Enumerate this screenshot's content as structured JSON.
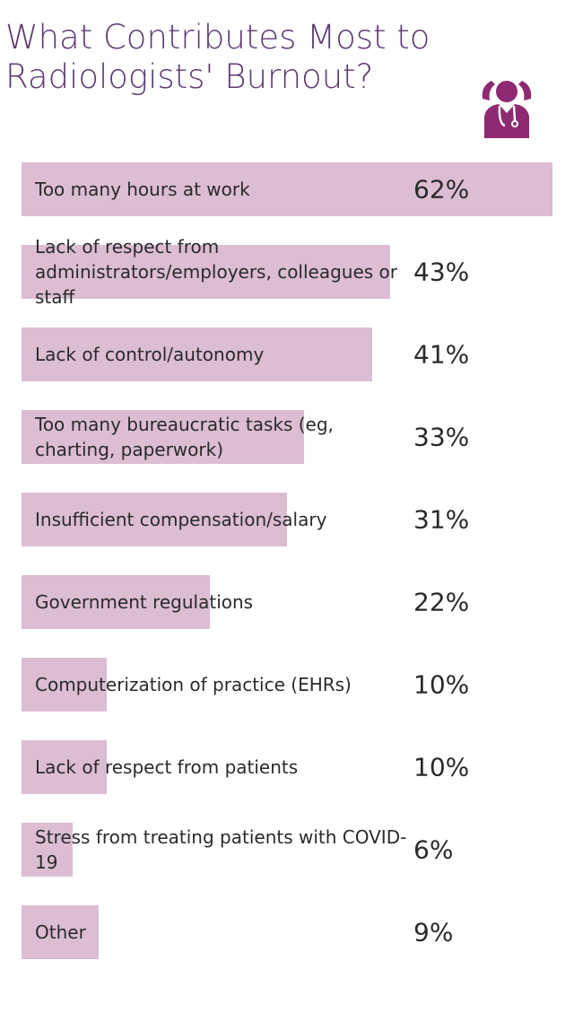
{
  "chart_data": {
    "type": "bar",
    "orientation": "horizontal",
    "title": "What Contributes Most to Radiologists' Burnout?",
    "categories": [
      "Too many hours at work",
      "Lack of respect from administrators/employers, colleagues or staff",
      "Lack of control/autonomy",
      "Too many bureaucratic tasks (eg, charting, paperwork)",
      "Insufficient compensation/salary",
      "Government regulations",
      "Computerization of practice (EHRs)",
      "Lack of respect from patients",
      "Stress from treating patients with COVID-19",
      "Other"
    ],
    "values": [
      62,
      43,
      41,
      33,
      31,
      22,
      10,
      10,
      6,
      9
    ],
    "value_labels": [
      "62%",
      "43%",
      "41%",
      "33%",
      "31%",
      "22%",
      "10%",
      "10%",
      "6%",
      "9%"
    ],
    "color": "#dcbdd3"
  }
}
